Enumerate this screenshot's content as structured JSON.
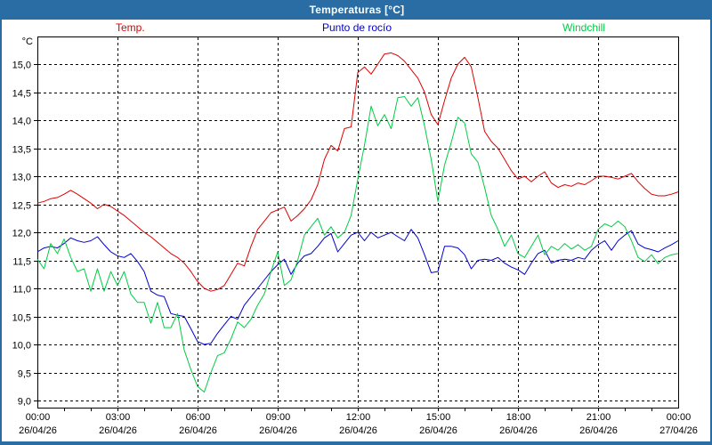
{
  "window": {
    "title": "Temperaturas [°C]",
    "title_bar_color": "#2a6da4",
    "frame_color": "#2a6da4"
  },
  "legend": {
    "items": [
      {
        "label": "Temp.",
        "color": "#dd0000"
      },
      {
        "label": "Punto de rocío",
        "color": "#0000cc"
      },
      {
        "label": "Windchill",
        "color": "#00cc44"
      }
    ]
  },
  "chart_data": {
    "type": "line",
    "title": "Temperaturas [°C]",
    "y_unit_label": "°C",
    "xlabel": "",
    "ylabel": "°C",
    "xlim_hours": [
      0,
      24
    ],
    "ylim": [
      9.0,
      15.0
    ],
    "grid": "dashed-black",
    "legend_position": "top",
    "x_start_hour": 0,
    "x_step_hours": 0.25,
    "y_ticks": [
      {
        "value": 15.0,
        "label": "15,0"
      },
      {
        "value": 14.5,
        "label": "14,5"
      },
      {
        "value": 14.0,
        "label": "14,0"
      },
      {
        "value": 13.5,
        "label": "13,5"
      },
      {
        "value": 13.0,
        "label": "13,0"
      },
      {
        "value": 12.5,
        "label": "12,5"
      },
      {
        "value": 12.0,
        "label": "12,0"
      },
      {
        "value": 11.5,
        "label": "11,5"
      },
      {
        "value": 11.0,
        "label": "11,0"
      },
      {
        "value": 10.5,
        "label": "10,5"
      },
      {
        "value": 10.0,
        "label": "10,0"
      },
      {
        "value": 9.5,
        "label": "9,5"
      },
      {
        "value": 9.0,
        "label": "9,0"
      }
    ],
    "x_ticks": [
      {
        "hour": 0,
        "time": "00:00",
        "date": "26/04/26"
      },
      {
        "hour": 3,
        "time": "03:00",
        "date": "26/04/26"
      },
      {
        "hour": 6,
        "time": "06:00",
        "date": "26/04/26"
      },
      {
        "hour": 9,
        "time": "09:00",
        "date": "26/04/26"
      },
      {
        "hour": 12,
        "time": "12:00",
        "date": "26/04/26"
      },
      {
        "hour": 15,
        "time": "15:00",
        "date": "26/04/26"
      },
      {
        "hour": 18,
        "time": "18:00",
        "date": "26/04/26"
      },
      {
        "hour": 21,
        "time": "21:00",
        "date": "26/04/26"
      },
      {
        "hour": 24,
        "time": "00:00",
        "date": "27/04/26"
      }
    ],
    "series": [
      {
        "name": "Temp.",
        "color": "#dd0000",
        "values": [
          12.52,
          12.55,
          12.6,
          12.62,
          12.68,
          12.75,
          12.68,
          12.6,
          12.52,
          12.42,
          12.5,
          12.46,
          12.38,
          12.3,
          12.2,
          12.1,
          12.0,
          11.92,
          11.82,
          11.72,
          11.62,
          11.55,
          11.45,
          11.3,
          11.12,
          11.0,
          10.95,
          10.98,
          11.05,
          11.25,
          11.45,
          11.4,
          11.75,
          12.05,
          12.2,
          12.35,
          12.4,
          12.45,
          12.2,
          12.3,
          12.42,
          12.58,
          12.85,
          13.3,
          13.55,
          13.45,
          13.85,
          13.88,
          14.85,
          14.95,
          14.82,
          15.0,
          15.18,
          15.2,
          15.15,
          15.05,
          14.9,
          14.75,
          14.5,
          14.1,
          13.92,
          14.35,
          14.75,
          15.0,
          15.12,
          14.95,
          14.4,
          13.8,
          13.62,
          13.5,
          13.3,
          13.1,
          12.95,
          13.0,
          12.9,
          13.0,
          13.08,
          12.88,
          12.8,
          12.85,
          12.82,
          12.88,
          12.85,
          12.92,
          13.0,
          13.0,
          12.98,
          12.95,
          13.0,
          13.05,
          12.9,
          12.78,
          12.68,
          12.65,
          12.65,
          12.68,
          12.72
        ]
      },
      {
        "name": "Punto de rocío",
        "color": "#0000cc",
        "values": [
          11.65,
          11.72,
          11.75,
          11.72,
          11.8,
          11.9,
          11.85,
          11.82,
          11.85,
          11.92,
          11.78,
          11.65,
          11.58,
          11.55,
          11.62,
          11.48,
          11.3,
          10.95,
          10.88,
          10.85,
          10.55,
          10.52,
          10.5,
          10.28,
          10.05,
          10.0,
          10.02,
          10.2,
          10.35,
          10.5,
          10.45,
          10.7,
          10.85,
          11.0,
          11.15,
          11.3,
          11.42,
          11.52,
          11.25,
          11.45,
          11.58,
          11.62,
          11.75,
          11.9,
          11.98,
          11.65,
          11.8,
          11.95,
          12.0,
          11.85,
          12.0,
          11.9,
          11.95,
          12.0,
          11.92,
          11.85,
          12.05,
          11.9,
          11.6,
          11.28,
          11.3,
          11.75,
          11.75,
          11.72,
          11.6,
          11.35,
          11.5,
          11.52,
          11.5,
          11.55,
          11.45,
          11.38,
          11.33,
          11.25,
          11.45,
          11.62,
          11.68,
          11.45,
          11.5,
          11.52,
          11.5,
          11.55,
          11.52,
          11.68,
          11.78,
          11.85,
          11.68,
          11.85,
          11.95,
          12.03,
          11.79,
          11.72,
          11.69,
          11.65,
          11.72,
          11.78,
          11.85
        ]
      },
      {
        "name": "Windchill",
        "color": "#00cc44",
        "values": [
          11.52,
          11.35,
          11.8,
          11.62,
          11.88,
          11.55,
          11.3,
          11.35,
          10.95,
          11.35,
          10.95,
          11.3,
          11.05,
          11.3,
          10.9,
          10.75,
          10.75,
          10.38,
          10.75,
          10.3,
          10.3,
          10.55,
          9.9,
          9.55,
          9.25,
          9.15,
          9.5,
          9.8,
          9.85,
          10.1,
          10.4,
          10.3,
          10.45,
          10.7,
          10.9,
          11.3,
          11.65,
          11.05,
          11.15,
          11.5,
          11.95,
          12.1,
          12.25,
          11.95,
          12.1,
          11.9,
          12.0,
          12.3,
          12.95,
          13.55,
          14.25,
          13.9,
          14.1,
          13.85,
          14.4,
          14.42,
          14.25,
          14.4,
          13.9,
          13.3,
          12.55,
          13.2,
          13.6,
          14.05,
          13.95,
          13.4,
          13.25,
          12.8,
          12.3,
          12.05,
          11.75,
          11.95,
          11.62,
          11.55,
          11.75,
          11.95,
          11.6,
          11.75,
          11.68,
          11.8,
          11.7,
          11.78,
          11.68,
          11.75,
          12.05,
          12.15,
          12.1,
          12.2,
          12.1,
          11.85,
          11.55,
          11.48,
          11.6,
          11.44,
          11.55,
          11.6,
          11.62
        ]
      }
    ]
  }
}
